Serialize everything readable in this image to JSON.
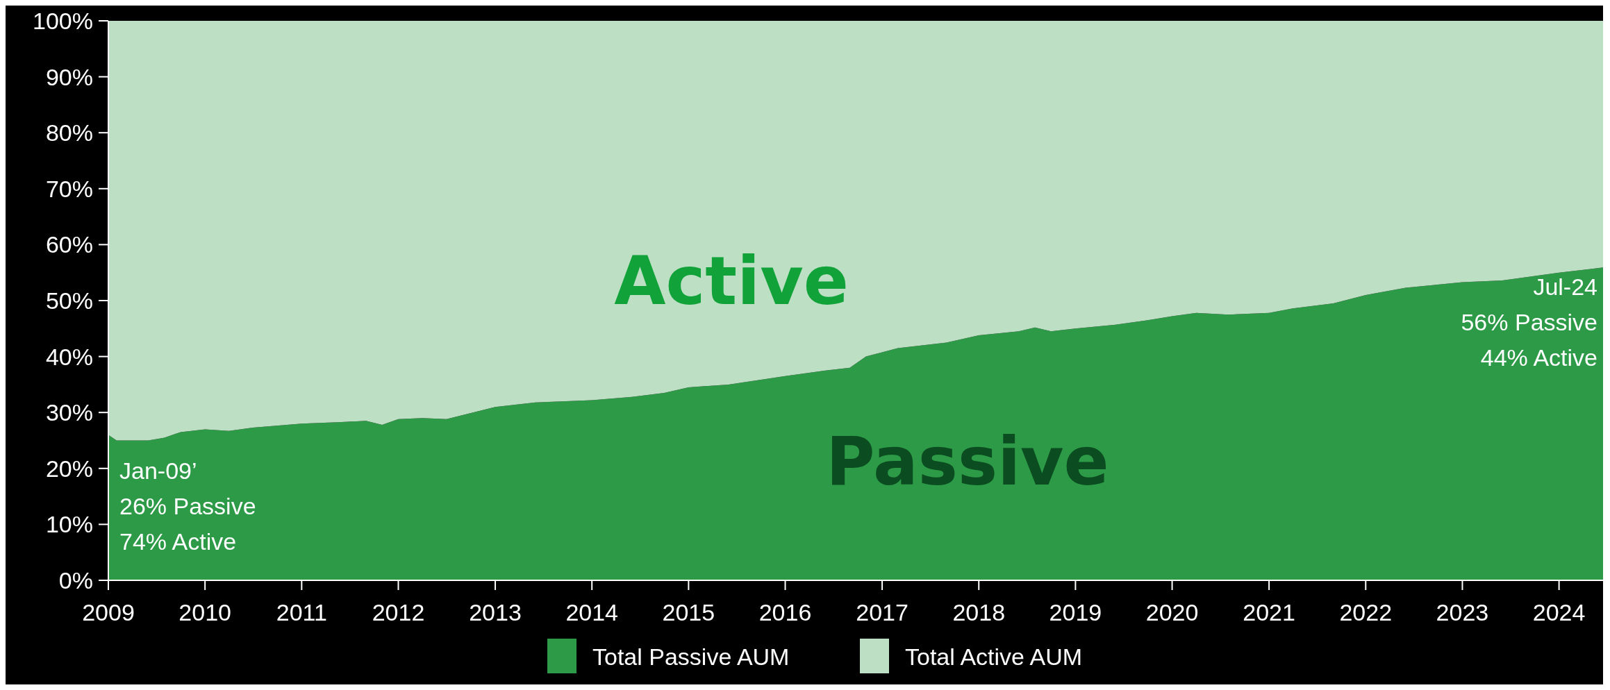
{
  "chart_data": {
    "type": "area",
    "stacked": true,
    "x": [
      "2009-01",
      "2009-02",
      "2009-06",
      "2009-08",
      "2009-10",
      "2010-01",
      "2010-04",
      "2010-07",
      "2011-01",
      "2011-06",
      "2011-09",
      "2011-11",
      "2012-01",
      "2012-04",
      "2012-07",
      "2013-01",
      "2013-06",
      "2014-01",
      "2014-06",
      "2014-10",
      "2015-01",
      "2015-06",
      "2016-01",
      "2016-06",
      "2016-09",
      "2016-11",
      "2017-03",
      "2017-06",
      "2017-09",
      "2018-01",
      "2018-06",
      "2018-08",
      "2018-10",
      "2019-01",
      "2019-06",
      "2019-10",
      "2020-01",
      "2020-04",
      "2020-08",
      "2021-01",
      "2021-04",
      "2021-09",
      "2022-01",
      "2022-06",
      "2023-01",
      "2023-06",
      "2024-01",
      "2024-07"
    ],
    "series": [
      {
        "name": "Total Passive AUM",
        "color": "#2c9a46",
        "values": [
          26,
          25,
          25,
          25.5,
          26.5,
          27,
          26.7,
          27.3,
          28,
          28.3,
          28.5,
          27.8,
          28.8,
          29,
          28.8,
          31,
          31.8,
          32.2,
          32.8,
          33.5,
          34.5,
          35,
          36.5,
          37.5,
          38,
          40,
          41.5,
          42,
          42.5,
          43.8,
          44.5,
          45.2,
          44.5,
          45,
          45.7,
          46.5,
          47.2,
          47.8,
          47.5,
          47.8,
          48.6,
          49.5,
          51,
          52.3,
          53.3,
          53.6,
          55,
          56
        ]
      },
      {
        "name": "Total Active AUM",
        "color": "#bddfc4",
        "values": [
          74,
          75,
          75,
          74.5,
          73.5,
          73,
          73.3,
          72.7,
          72,
          71.7,
          71.5,
          72.2,
          71.2,
          71,
          71.2,
          69,
          68.2,
          67.8,
          67.2,
          66.5,
          65.5,
          65,
          63.5,
          62.5,
          62,
          60,
          58.5,
          58,
          57.5,
          56.2,
          55.5,
          54.8,
          55.5,
          55,
          54.3,
          53.5,
          52.8,
          52.2,
          52.5,
          52.2,
          51.4,
          50.5,
          49,
          47.7,
          46.7,
          46.4,
          45,
          44
        ]
      }
    ],
    "xlim": [
      "2009-01",
      "2024-07"
    ],
    "xticks": [
      {
        "value": "2009",
        "label": "2009"
      },
      {
        "value": "2010",
        "label": "2010"
      },
      {
        "value": "2011",
        "label": "2011"
      },
      {
        "value": "2012",
        "label": "2012"
      },
      {
        "value": "2013",
        "label": "2013"
      },
      {
        "value": "2014",
        "label": "2014"
      },
      {
        "value": "2015",
        "label": "2015"
      },
      {
        "value": "2016",
        "label": "2016"
      },
      {
        "value": "2017",
        "label": "2017"
      },
      {
        "value": "2018",
        "label": "2018"
      },
      {
        "value": "2019",
        "label": "2019"
      },
      {
        "value": "2020",
        "label": "2020"
      },
      {
        "value": "2021",
        "label": "2021"
      },
      {
        "value": "2022",
        "label": "2022"
      },
      {
        "value": "2023",
        "label": "2023"
      },
      {
        "value": "2024",
        "label": "2024"
      }
    ],
    "ylim": [
      0,
      100
    ],
    "yticks": [
      {
        "value": 0,
        "label": "0%"
      },
      {
        "value": 10,
        "label": "10%"
      },
      {
        "value": 20,
        "label": "20%"
      },
      {
        "value": 30,
        "label": "30%"
      },
      {
        "value": 40,
        "label": "40%"
      },
      {
        "value": 50,
        "label": "50%"
      },
      {
        "value": 60,
        "label": "60%"
      },
      {
        "value": 70,
        "label": "70%"
      },
      {
        "value": 80,
        "label": "80%"
      },
      {
        "value": 90,
        "label": "90%"
      },
      {
        "value": 100,
        "label": "100%"
      }
    ],
    "annotations": [
      "Active",
      "Passive",
      {
        "text": "Jan-09’\n26% Passive\n74% Active",
        "x": "2009-01",
        "y": 26
      },
      {
        "text": "Jul-24\n56% Passive\n44% Active",
        "x": "2024-07",
        "y": 56
      }
    ],
    "grid": false,
    "legend": "bottom"
  }
}
